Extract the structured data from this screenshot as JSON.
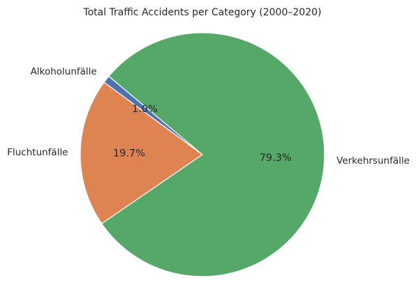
{
  "chart_data": {
    "type": "pie",
    "title": "Total Traffic Accidents per Category (2000–2020)",
    "categories": [
      "Alkoholunfälle",
      "Fluchtunfälle",
      "Verkehrsunfälle"
    ],
    "values": [
      1.0,
      19.7,
      79.3
    ],
    "percent_labels": [
      "1.0%",
      "19.7%",
      "79.3%"
    ],
    "colors": [
      "#4c72b0",
      "#dd8452",
      "#55a868"
    ],
    "start_angle_deg": 140,
    "direction": "counterclockwise",
    "legend": "none"
  }
}
